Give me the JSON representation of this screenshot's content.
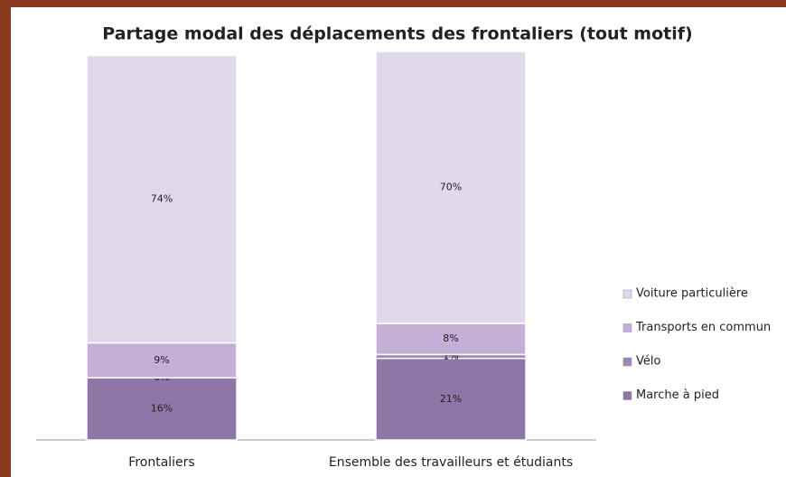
{
  "chart_data": {
    "type": "stacked_bar",
    "title": "Partage modal des déplacements des frontaliers (tout motif)",
    "categories": [
      "Frontaliers",
      "Ensemble des travailleurs et étudiants"
    ],
    "series": [
      {
        "name": "Marche à pied",
        "color": "#8f76a6",
        "values": [
          16,
          21
        ],
        "value_labels": [
          "16%",
          "21%"
        ]
      },
      {
        "name": "Vélo",
        "color": "#a088b6",
        "values": [
          0,
          1
        ],
        "value_labels": [
          "0%",
          "1%"
        ]
      },
      {
        "name": "Transports en commun",
        "color": "#c4afd6",
        "values": [
          9,
          8
        ],
        "value_labels": [
          "9%",
          "8%"
        ]
      },
      {
        "name": "Voiture particulière",
        "color": "#e2d8eb",
        "values": [
          74,
          70
        ],
        "value_labels": [
          "74%",
          "70%"
        ]
      }
    ]
  }
}
